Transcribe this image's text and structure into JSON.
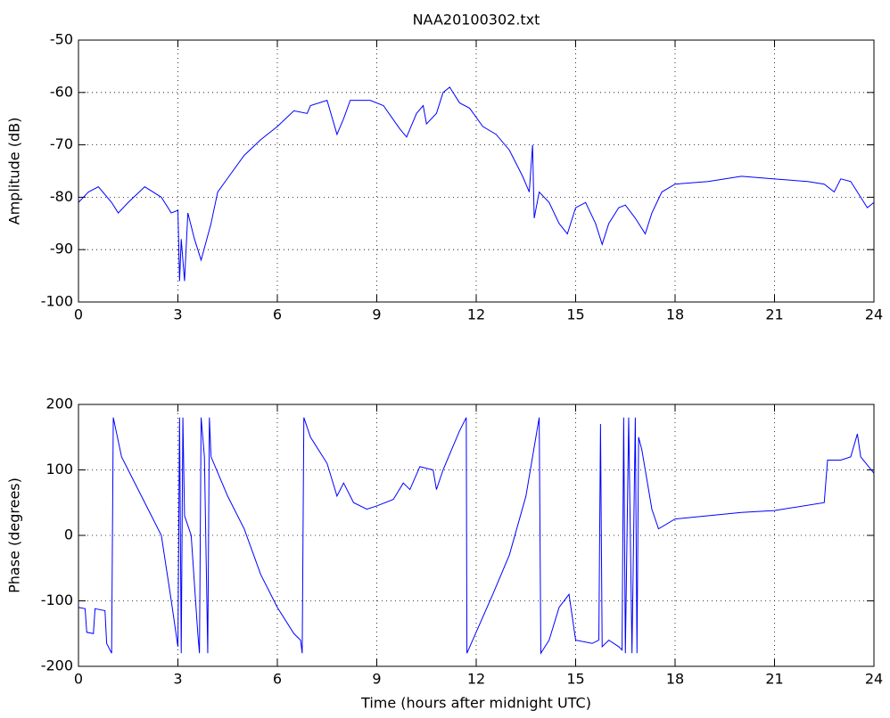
{
  "chart_data": [
    {
      "type": "line",
      "title": "NAA20100302.txt",
      "ylabel": "Amplitude (dB)",
      "color": "#0000ff",
      "grid": true,
      "xlim": [
        0,
        24
      ],
      "xticks": [
        0,
        3,
        6,
        9,
        12,
        15,
        18,
        21,
        24
      ],
      "ylim": [
        -100,
        -50
      ],
      "yticks": [
        -100,
        -90,
        -80,
        -70,
        -60,
        -50
      ],
      "x": [
        0,
        0.3,
        0.6,
        1,
        1.2,
        1.5,
        2,
        2.5,
        2.8,
        3,
        3.05,
        3.1,
        3.2,
        3.3,
        3.5,
        3.7,
        4,
        4.2,
        5,
        5.5,
        6,
        6.5,
        6.9,
        7,
        7.5,
        7.8,
        8,
        8.2,
        8.8,
        9.2,
        9.7,
        9.9,
        10.2,
        10.4,
        10.5,
        10.8,
        11,
        11.2,
        11.5,
        11.8,
        12.2,
        12.6,
        13,
        13.4,
        13.6,
        13.7,
        13.75,
        13.9,
        14.2,
        14.5,
        14.75,
        15,
        15.3,
        15.6,
        15.8,
        16,
        16.3,
        16.5,
        16.8,
        17.1,
        17.3,
        17.6,
        18,
        19,
        20,
        21,
        22,
        22.5,
        22.8,
        23,
        23.3,
        23.6,
        23.8,
        24
      ],
      "values": [
        -81,
        -79,
        -78,
        -81,
        -83,
        -81,
        -78,
        -80,
        -83,
        -82.5,
        -96,
        -88,
        -96,
        -83,
        -88,
        -92,
        -85,
        -79,
        -72,
        -69,
        -66.5,
        -63.5,
        -64,
        -62.5,
        -61.5,
        -68,
        -65,
        -61.5,
        -61.5,
        -62.5,
        -67,
        -68.5,
        -64,
        -62.5,
        -66,
        -64,
        -60,
        -59,
        -62,
        -63,
        -66.5,
        -68,
        -71,
        -76,
        -79,
        -70,
        -84,
        -79,
        -81,
        -85,
        -87,
        -82,
        -81,
        -85,
        -89,
        -85,
        -82,
        -81.5,
        -84,
        -87,
        -83,
        -79,
        -77.5,
        -77,
        -76,
        -76.5,
        -77,
        -77.5,
        -79,
        -76.5,
        -77,
        -80,
        -82,
        -81
      ]
    },
    {
      "type": "line",
      "ylabel": "Phase (degrees)",
      "xlabel": "Time (hours after midnight UTC)",
      "color": "#0000ff",
      "grid": true,
      "xlim": [
        0,
        24
      ],
      "xticks": [
        0,
        3,
        6,
        9,
        12,
        15,
        18,
        21,
        24
      ],
      "ylim": [
        -200,
        200
      ],
      "yticks": [
        -200,
        -100,
        0,
        100,
        200
      ],
      "x": [
        0,
        0.2,
        0.25,
        0.45,
        0.5,
        0.8,
        0.85,
        1,
        1.05,
        1.3,
        2,
        2.5,
        2.8,
        3,
        3.05,
        3.1,
        3.15,
        3.2,
        3.4,
        3.6,
        3.65,
        3.7,
        3.8,
        3.9,
        3.95,
        4,
        4.5,
        5,
        5.5,
        6,
        6.5,
        6.7,
        6.75,
        6.8,
        7,
        7.5,
        7.8,
        8,
        8.3,
        8.7,
        9,
        9.5,
        9.8,
        10,
        10.3,
        10.7,
        10.8,
        11,
        11.5,
        11.7,
        11.72,
        12.5,
        13,
        13.5,
        13.9,
        13.95,
        14.2,
        14.5,
        14.8,
        15,
        15.5,
        15.7,
        15.75,
        15.8,
        16,
        16.3,
        16.4,
        16.45,
        16.5,
        16.6,
        16.7,
        16.8,
        16.85,
        16.9,
        17,
        17.3,
        17.5,
        18,
        20,
        21,
        22.5,
        22.6,
        23,
        23.3,
        23.5,
        23.6,
        24
      ],
      "values": [
        -110,
        -112,
        -148,
        -150,
        -112,
        -115,
        -165,
        -180,
        180,
        120,
        50,
        0,
        -100,
        -170,
        180,
        -180,
        180,
        30,
        0,
        -150,
        -180,
        180,
        120,
        -180,
        180,
        120,
        60,
        10,
        -60,
        -110,
        -150,
        -160,
        -180,
        180,
        150,
        110,
        60,
        80,
        50,
        40,
        45,
        55,
        80,
        70,
        105,
        100,
        70,
        100,
        160,
        180,
        -180,
        -90,
        -30,
        60,
        180,
        -180,
        -160,
        -110,
        -90,
        -160,
        -165,
        -160,
        170,
        -170,
        -160,
        -170,
        -175,
        180,
        -180,
        180,
        -180,
        180,
        -180,
        150,
        130,
        40,
        10,
        25,
        35,
        38,
        50,
        115,
        115,
        120,
        155,
        120,
        95
      ]
    }
  ]
}
